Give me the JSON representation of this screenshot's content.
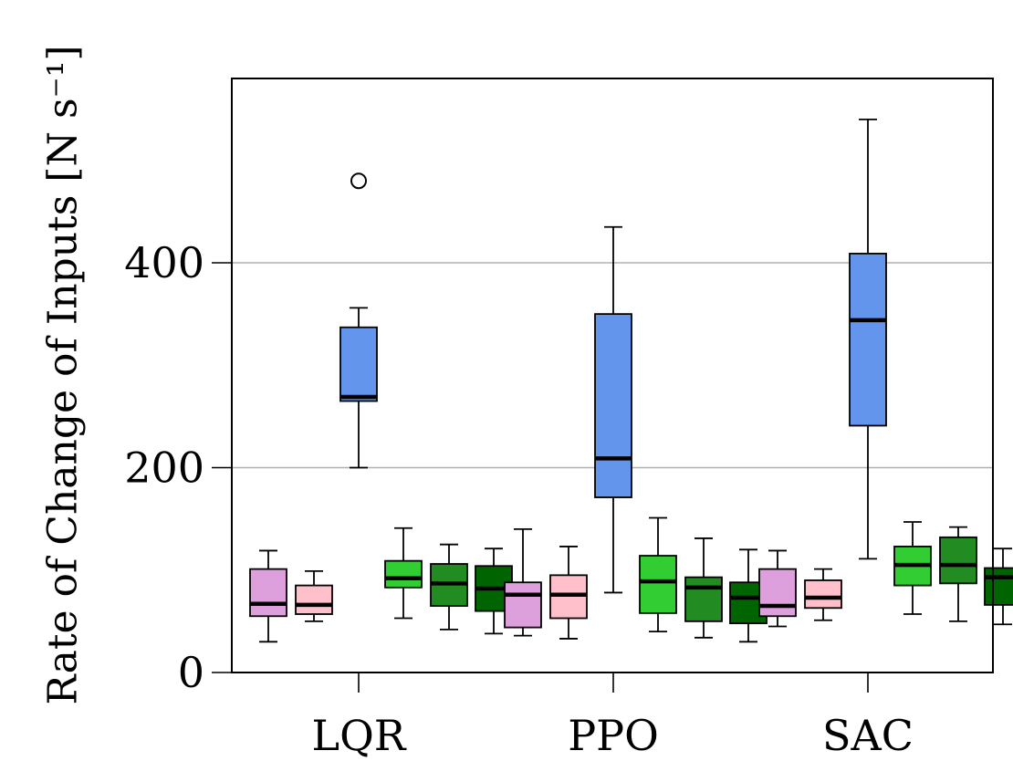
{
  "chart_data": {
    "type": "box",
    "ylabel": "Rate of Change of Inputs [N s⁻¹]",
    "ylim": [
      0,
      580
    ],
    "yticks": [
      0,
      200,
      400
    ],
    "grid": true,
    "categories": [
      "LQR",
      "PPO",
      "SAC"
    ],
    "series_colors": [
      "#dda0dd",
      "#ffc0cb",
      "#6495ed",
      "#32cd32",
      "#228b22",
      "#006400"
    ],
    "boxes": [
      [
        {
          "whislo": 30,
          "q1": 55,
          "med": 67,
          "q3": 101,
          "whishi": 119,
          "fliers": []
        },
        {
          "whislo": 50,
          "q1": 57,
          "med": 66,
          "q3": 85,
          "whishi": 99,
          "fliers": []
        },
        {
          "whislo": 200,
          "q1": 265,
          "med": 269,
          "q3": 337,
          "whishi": 356,
          "fliers": [
            480
          ]
        },
        {
          "whislo": 53,
          "q1": 83,
          "med": 92,
          "q3": 109,
          "whishi": 141,
          "fliers": []
        },
        {
          "whislo": 42,
          "q1": 65,
          "med": 87,
          "q3": 106,
          "whishi": 125,
          "fliers": []
        },
        {
          "whislo": 38,
          "q1": 60,
          "med": 82,
          "q3": 104,
          "whishi": 121,
          "fliers": []
        }
      ],
      [
        {
          "whislo": 36,
          "q1": 44,
          "med": 76,
          "q3": 88,
          "whishi": 140,
          "fliers": []
        },
        {
          "whislo": 33,
          "q1": 53,
          "med": 76,
          "q3": 95,
          "whishi": 123,
          "fliers": []
        },
        {
          "whislo": 78,
          "q1": 171,
          "med": 209,
          "q3": 350,
          "whishi": 435,
          "fliers": []
        },
        {
          "whislo": 40,
          "q1": 58,
          "med": 89,
          "q3": 114,
          "whishi": 151,
          "fliers": []
        },
        {
          "whislo": 34,
          "q1": 50,
          "med": 83,
          "q3": 93,
          "whishi": 131,
          "fliers": []
        },
        {
          "whislo": 30,
          "q1": 48,
          "med": 73,
          "q3": 88,
          "whishi": 120,
          "fliers": []
        }
      ],
      [
        {
          "whislo": 45,
          "q1": 55,
          "med": 65,
          "q3": 101,
          "whishi": 119,
          "fliers": []
        },
        {
          "whislo": 51,
          "q1": 63,
          "med": 73,
          "q3": 90,
          "whishi": 101,
          "fliers": []
        },
        {
          "whislo": 111,
          "q1": 241,
          "med": 344,
          "q3": 409,
          "whishi": 540,
          "fliers": []
        },
        {
          "whislo": 57,
          "q1": 85,
          "med": 105,
          "q3": 123,
          "whishi": 147,
          "fliers": []
        },
        {
          "whislo": 50,
          "q1": 87,
          "med": 105,
          "q3": 132,
          "whishi": 142,
          "fliers": []
        },
        {
          "whislo": 47,
          "q1": 66,
          "med": 93,
          "q3": 102,
          "whishi": 121,
          "fliers": []
        }
      ]
    ]
  }
}
